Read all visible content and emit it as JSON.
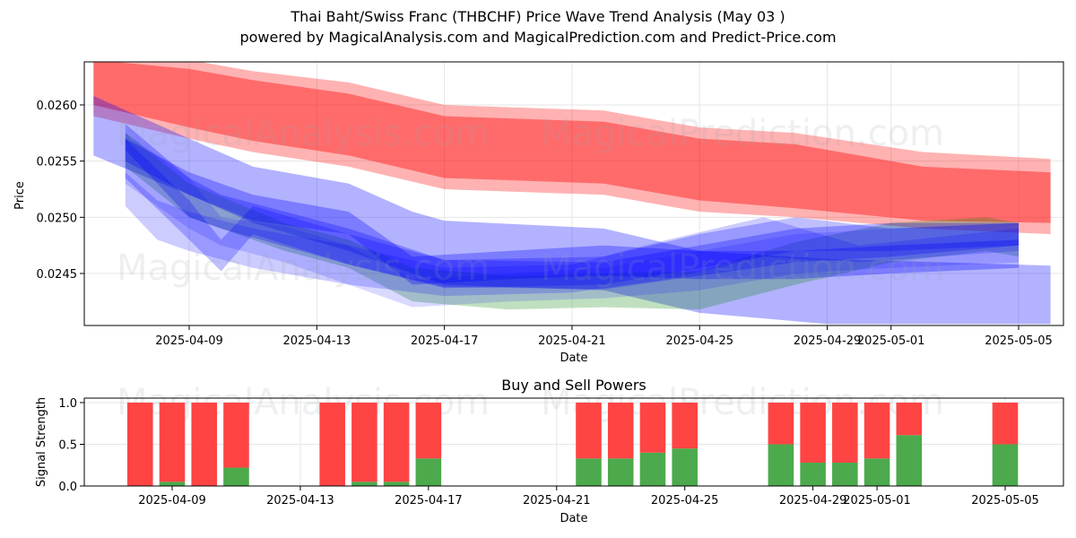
{
  "title": "Thai Baht/Swiss Franc (THBCHF) Price Wave Trend Analysis (May 03 )",
  "subtitle": "powered by MagicalAnalysis.com and MagicalPrediction.com and Predict-Price.com",
  "watermarks": [
    "MagicalAnalysis.com",
    "MagicalPrediction.com"
  ],
  "chart_data": [
    {
      "type": "area",
      "name": "price-wave-chart",
      "xlabel": "Date",
      "ylabel": "Price",
      "x_ticks": [
        "2025-04-09",
        "2025-04-13",
        "2025-04-17",
        "2025-04-21",
        "2025-04-25",
        "2025-04-29",
        "2025-05-01",
        "2025-05-05"
      ],
      "y_ticks": [
        "0.0245",
        "0.0250",
        "0.0255",
        "0.0260"
      ],
      "xlim": [
        "2025-04-06",
        "2025-05-06"
      ],
      "ylim": [
        0.02405,
        0.02638
      ],
      "grid": true,
      "colors": {
        "red": "#ff0000",
        "blue": "#0000ff",
        "green": "#008000"
      },
      "bands": [
        {
          "color": "red",
          "opacity": 0.3,
          "x": [
            "2025-04-06",
            "2025-04-09",
            "2025-04-11",
            "2025-04-14",
            "2025-04-17",
            "2025-04-22",
            "2025-04-25",
            "2025-04-28",
            "2025-05-02",
            "2025-05-06"
          ],
          "lower": [
            0.0259,
            0.0257,
            0.02558,
            0.02545,
            0.02525,
            0.0252,
            0.02505,
            0.025,
            0.0249,
            0.02485
          ],
          "upper": [
            0.02645,
            0.0264,
            0.0263,
            0.0262,
            0.026,
            0.02595,
            0.0258,
            0.02575,
            0.02558,
            0.02552
          ]
        },
        {
          "color": "red",
          "opacity": 0.4,
          "x": [
            "2025-04-06",
            "2025-04-09",
            "2025-04-11",
            "2025-04-14",
            "2025-04-17",
            "2025-04-22",
            "2025-04-25",
            "2025-04-28",
            "2025-05-02",
            "2025-05-06"
          ],
          "lower": [
            0.026,
            0.0258,
            0.02568,
            0.02555,
            0.02535,
            0.0253,
            0.02515,
            0.02508,
            0.02497,
            0.02495
          ],
          "upper": [
            0.0264,
            0.02632,
            0.02622,
            0.0261,
            0.0259,
            0.02585,
            0.0257,
            0.02565,
            0.02545,
            0.0254
          ]
        },
        {
          "color": "blue",
          "opacity": 0.3,
          "x": [
            "2025-04-06",
            "2025-04-09",
            "2025-04-11",
            "2025-04-14",
            "2025-04-16",
            "2025-04-17",
            "2025-04-22",
            "2025-04-25",
            "2025-04-29",
            "2025-05-06"
          ],
          "lower": [
            0.02555,
            0.0252,
            0.02495,
            0.0247,
            0.0245,
            0.0244,
            0.02435,
            0.02415,
            0.02405,
            0.02405
          ],
          "upper": [
            0.02608,
            0.0257,
            0.02545,
            0.0253,
            0.02505,
            0.02497,
            0.0249,
            0.0247,
            0.02463,
            0.02457
          ]
        },
        {
          "color": "green",
          "opacity": 0.25,
          "x": [
            "2025-04-07",
            "2025-04-09",
            "2025-04-12",
            "2025-04-14",
            "2025-04-16",
            "2025-04-19",
            "2025-04-22",
            "2025-04-25",
            "2025-04-28",
            "2025-05-01",
            "2025-05-04",
            "2025-05-05"
          ],
          "lower": [
            0.02545,
            0.025,
            0.0247,
            0.02455,
            0.02425,
            0.02418,
            0.0242,
            0.02418,
            0.0244,
            0.0246,
            0.0247,
            0.02465
          ],
          "upper": [
            0.02575,
            0.0253,
            0.02495,
            0.0248,
            0.02455,
            0.02448,
            0.0245,
            0.02452,
            0.02478,
            0.02495,
            0.025,
            0.02495
          ]
        },
        {
          "color": "blue",
          "opacity": 0.15,
          "x": [
            "2025-04-07",
            "2025-04-09",
            "2025-04-10",
            "2025-04-12",
            "2025-04-14",
            "2025-04-16",
            "2025-04-19",
            "2025-04-22",
            "2025-04-25",
            "2025-04-28",
            "2025-05-01",
            "2025-05-05"
          ],
          "lower": [
            0.0253,
            0.0249,
            0.02475,
            0.0246,
            0.0244,
            0.0242,
            0.02425,
            0.02428,
            0.02435,
            0.0245,
            0.02455,
            0.0246
          ],
          "upper": [
            0.02575,
            0.02535,
            0.025,
            0.02492,
            0.02475,
            0.02445,
            0.0245,
            0.02455,
            0.0247,
            0.02485,
            0.0249,
            0.02495
          ]
        },
        {
          "color": "blue",
          "opacity": 0.2,
          "x": [
            "2025-04-07",
            "2025-04-08",
            "2025-04-09",
            "2025-04-11",
            "2025-04-14",
            "2025-04-17",
            "2025-04-21",
            "2025-04-24",
            "2025-04-27",
            "2025-04-30",
            "2025-05-05"
          ],
          "lower": [
            0.0251,
            0.0248,
            0.0247,
            0.02455,
            0.0244,
            0.0243,
            0.02433,
            0.02445,
            0.02465,
            0.0246,
            0.0247
          ],
          "upper": [
            0.0254,
            0.02515,
            0.02505,
            0.0249,
            0.02475,
            0.02455,
            0.02458,
            0.0248,
            0.025,
            0.02475,
            0.0249
          ]
        },
        {
          "color": "blue",
          "opacity": 0.25,
          "x": [
            "2025-04-07",
            "2025-04-09",
            "2025-04-10",
            "2025-04-11",
            "2025-04-14",
            "2025-04-17",
            "2025-04-22",
            "2025-04-25",
            "2025-04-28",
            "2025-05-01",
            "2025-05-05"
          ],
          "lower": [
            0.02535,
            0.0248,
            0.02452,
            0.02485,
            0.02458,
            0.02437,
            0.0244,
            0.02455,
            0.0247,
            0.0247,
            0.02475
          ],
          "upper": [
            0.0257,
            0.02515,
            0.0248,
            0.0251,
            0.02485,
            0.02462,
            0.02465,
            0.02485,
            0.025,
            0.0249,
            0.02495
          ]
        },
        {
          "color": "blue",
          "opacity": 0.28,
          "x": [
            "2025-04-07",
            "2025-04-09",
            "2025-04-10",
            "2025-04-14",
            "2025-04-17",
            "2025-04-22",
            "2025-04-25",
            "2025-04-28",
            "2025-05-01",
            "2025-05-05"
          ],
          "lower": [
            0.0256,
            0.025,
            0.0249,
            0.02458,
            0.02438,
            0.02436,
            0.02448,
            0.0246,
            0.02465,
            0.02475
          ],
          "upper": [
            0.02583,
            0.02535,
            0.0252,
            0.0249,
            0.02462,
            0.0246,
            0.02475,
            0.0249,
            0.02495,
            0.02495
          ]
        },
        {
          "color": "blue",
          "opacity": 0.3,
          "x": [
            "2025-04-07",
            "2025-04-09",
            "2025-04-11",
            "2025-04-14",
            "2025-04-16",
            "2025-04-19",
            "2025-04-22",
            "2025-04-25",
            "2025-04-28",
            "2025-05-01",
            "2025-05-05"
          ],
          "lower": [
            0.0255,
            0.0252,
            0.02497,
            0.02485,
            0.0244,
            0.02445,
            0.02448,
            0.02445,
            0.02445,
            0.0245,
            0.02455
          ],
          "upper": [
            0.0257,
            0.0254,
            0.0252,
            0.02505,
            0.02465,
            0.0247,
            0.02475,
            0.0247,
            0.0247,
            0.02475,
            0.0248
          ]
        }
      ]
    },
    {
      "type": "bar",
      "name": "buy-sell-powers-chart",
      "title": "Buy and Sell Powers",
      "xlabel": "Date",
      "ylabel": "Signal Strength",
      "x_ticks": [
        "2025-04-09",
        "2025-04-13",
        "2025-04-17",
        "2025-04-21",
        "2025-04-25",
        "2025-04-29",
        "2025-05-01",
        "2025-05-05"
      ],
      "y_ticks": [
        "0.0",
        "0.5",
        "1.0"
      ],
      "ylim": [
        0,
        1.05
      ],
      "grid": true,
      "colors": {
        "buy": "#4caa4c",
        "sell": "#ff4444"
      },
      "categories": [
        "2025-04-08",
        "2025-04-09",
        "2025-04-10",
        "2025-04-11",
        "2025-04-14",
        "2025-04-15",
        "2025-04-16",
        "2025-04-17",
        "2025-04-22",
        "2025-04-23",
        "2025-04-24",
        "2025-04-25",
        "2025-04-28",
        "2025-04-29",
        "2025-04-30",
        "2025-05-01",
        "2025-05-02",
        "2025-05-05"
      ],
      "series": [
        {
          "name": "Buy",
          "values": [
            0.0,
            0.05,
            0.0,
            0.22,
            0.0,
            0.05,
            0.05,
            0.33,
            0.33,
            0.33,
            0.4,
            0.45,
            0.5,
            0.28,
            0.28,
            0.33,
            0.61,
            0.5
          ]
        },
        {
          "name": "Sell",
          "values": [
            1.0,
            0.95,
            1.0,
            0.78,
            1.0,
            0.95,
            0.95,
            0.67,
            0.67,
            0.67,
            0.6,
            0.55,
            0.5,
            0.72,
            0.72,
            0.67,
            0.39,
            0.5
          ]
        }
      ]
    }
  ]
}
